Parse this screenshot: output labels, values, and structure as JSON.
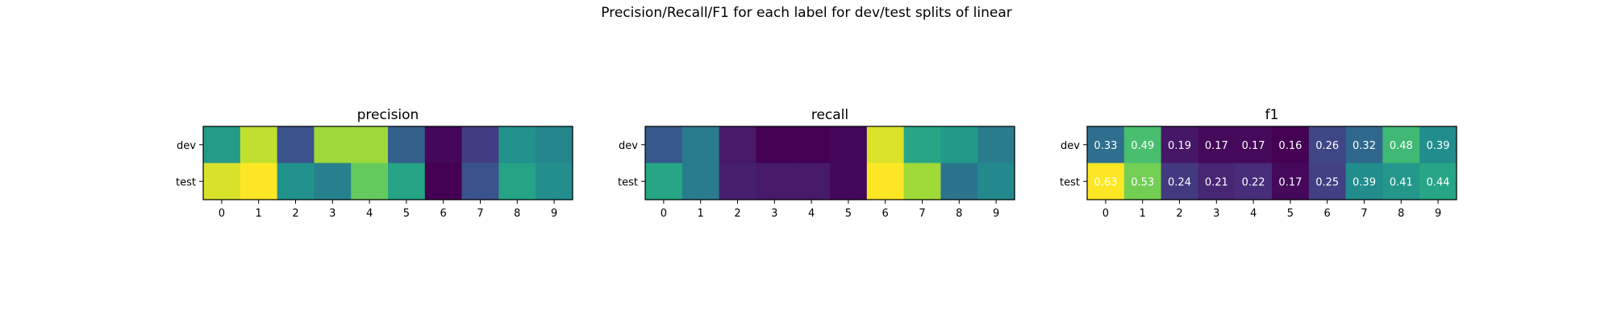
{
  "suptitle": "Precision/Recall/F1 for each label for dev/test splits of linear",
  "chart_data": [
    {
      "type": "heatmap",
      "title": "precision",
      "rows": [
        "dev",
        "test"
      ],
      "columns": [
        "0",
        "1",
        "2",
        "3",
        "4",
        "5",
        "6",
        "7",
        "8",
        "9"
      ],
      "values": [
        [
          0.38,
          0.58,
          0.22,
          0.55,
          0.55,
          0.25,
          0.09,
          0.18,
          0.36,
          0.33
        ],
        [
          0.6,
          0.63,
          0.36,
          0.32,
          0.5,
          0.4,
          0.08,
          0.22,
          0.4,
          0.35
        ]
      ],
      "vmin": 0.08,
      "vmax": 0.63,
      "colormap": "viridis",
      "annotated": false
    },
    {
      "type": "heatmap",
      "title": "recall",
      "rows": [
        "dev",
        "test"
      ],
      "columns": [
        "0",
        "1",
        "2",
        "3",
        "4",
        "5",
        "6",
        "7",
        "8",
        "9"
      ],
      "values": [
        [
          0.22,
          0.3,
          0.1,
          0.06,
          0.06,
          0.07,
          0.6,
          0.4,
          0.37,
          0.3
        ],
        [
          0.4,
          0.3,
          0.11,
          0.1,
          0.1,
          0.07,
          0.63,
          0.55,
          0.28,
          0.33
        ]
      ],
      "vmin": 0.06,
      "vmax": 0.63,
      "colormap": "viridis",
      "annotated": false
    },
    {
      "type": "heatmap",
      "title": "f1",
      "rows": [
        "dev",
        "test"
      ],
      "columns": [
        "0",
        "1",
        "2",
        "3",
        "4",
        "5",
        "6",
        "7",
        "8",
        "9"
      ],
      "values": [
        [
          0.33,
          0.49,
          0.19,
          0.17,
          0.17,
          0.16,
          0.26,
          0.32,
          0.48,
          0.39
        ],
        [
          0.63,
          0.53,
          0.24,
          0.21,
          0.22,
          0.17,
          0.25,
          0.39,
          0.41,
          0.44
        ]
      ],
      "vmin": 0.16,
      "vmax": 0.63,
      "colormap": "viridis",
      "annotated": true
    }
  ]
}
